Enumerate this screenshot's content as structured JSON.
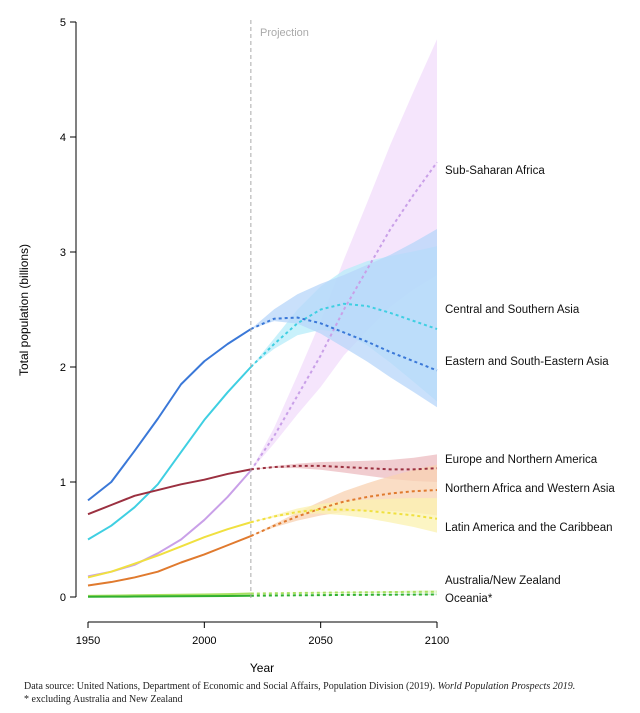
{
  "chart_data": {
    "type": "line",
    "xlabel": "Year",
    "ylabel": "Total population (billions)",
    "xlim": [
      1950,
      2100
    ],
    "ylim": [
      0,
      5
    ],
    "xticks": [
      1950,
      2000,
      2050,
      2100
    ],
    "yticks": [
      0,
      1,
      2,
      3,
      4,
      5
    ],
    "projection_start": 2020,
    "projection_label": "Projection",
    "grid": false,
    "legend": "right (direct labels)",
    "x": [
      1950,
      1960,
      1970,
      1980,
      1990,
      2000,
      2010,
      2020,
      2030,
      2040,
      2050,
      2060,
      2070,
      2080,
      2090,
      2100
    ],
    "series": [
      {
        "name": "Sub-Saharan Africa",
        "color": "#c9a0e8",
        "band_color": "#f1dcfb",
        "values": [
          0.18,
          0.22,
          0.28,
          0.38,
          0.5,
          0.67,
          0.87,
          1.1,
          1.4,
          1.75,
          2.1,
          2.5,
          2.85,
          3.2,
          3.5,
          3.78
        ],
        "band_2100": [
          2.8,
          4.85
        ]
      },
      {
        "name": "Central and Southern Asia",
        "color": "#3fcfe2",
        "band_color": "#b7ecfa",
        "values": [
          0.5,
          0.62,
          0.78,
          0.98,
          1.26,
          1.54,
          1.78,
          2.0,
          2.2,
          2.38,
          2.5,
          2.55,
          2.53,
          2.47,
          2.4,
          2.33
        ],
        "band_2100": [
          1.7,
          3.05
        ]
      },
      {
        "name": "Eastern and South-Eastern Asia",
        "color": "#3a78d8",
        "band_color": "#b7d5fa",
        "values": [
          0.84,
          1.0,
          1.27,
          1.55,
          1.85,
          2.05,
          2.2,
          2.33,
          2.42,
          2.43,
          2.38,
          2.3,
          2.22,
          2.13,
          2.05,
          1.97
        ],
        "band_2100": [
          1.65,
          3.2
        ]
      },
      {
        "name": "Europe and Northern America",
        "color": "#9b3040",
        "band_color": "#ecbcc0",
        "values": [
          0.72,
          0.8,
          0.88,
          0.93,
          0.98,
          1.02,
          1.07,
          1.11,
          1.13,
          1.14,
          1.14,
          1.13,
          1.12,
          1.11,
          1.11,
          1.12
        ],
        "band_2100": [
          1.0,
          1.24
        ]
      },
      {
        "name": "Northern Africa and Western Asia",
        "color": "#e07a2e",
        "band_color": "#f8d2b2",
        "values": [
          0.1,
          0.13,
          0.17,
          0.22,
          0.3,
          0.37,
          0.45,
          0.53,
          0.62,
          0.7,
          0.77,
          0.83,
          0.87,
          0.9,
          0.92,
          0.93
        ],
        "band_2100": [
          0.71,
          1.15
        ]
      },
      {
        "name": "Latin America and the Caribbean",
        "color": "#f0e040",
        "band_color": "#fbf2b0",
        "values": [
          0.17,
          0.22,
          0.29,
          0.36,
          0.44,
          0.52,
          0.59,
          0.65,
          0.7,
          0.74,
          0.76,
          0.76,
          0.75,
          0.73,
          0.71,
          0.68
        ],
        "band_2100": [
          0.56,
          0.86
        ]
      },
      {
        "name": "Australia/New Zealand",
        "color": "#a8e060",
        "band_color": "#dff5c4",
        "values": [
          0.01,
          0.012,
          0.015,
          0.017,
          0.02,
          0.022,
          0.025,
          0.03,
          0.032,
          0.035,
          0.037,
          0.04,
          0.041,
          0.043,
          0.045,
          0.046
        ],
        "band_2100": [
          0.036,
          0.058
        ]
      },
      {
        "name": "Oceania*",
        "color": "#30b030",
        "band_color": "#c6ecc6",
        "values": [
          0.002,
          0.003,
          0.004,
          0.005,
          0.006,
          0.008,
          0.009,
          0.011,
          0.013,
          0.015,
          0.016,
          0.018,
          0.019,
          0.02,
          0.021,
          0.022
        ],
        "band_2100": [
          0.016,
          0.03
        ]
      }
    ]
  },
  "footnotes": {
    "source": "Data source: United Nations, Department of Economic and Social Affairs, Population Division (2019).",
    "source_title": "World Population Prospects 2019.",
    "asterisk": "* excluding Australia and New Zealand"
  }
}
